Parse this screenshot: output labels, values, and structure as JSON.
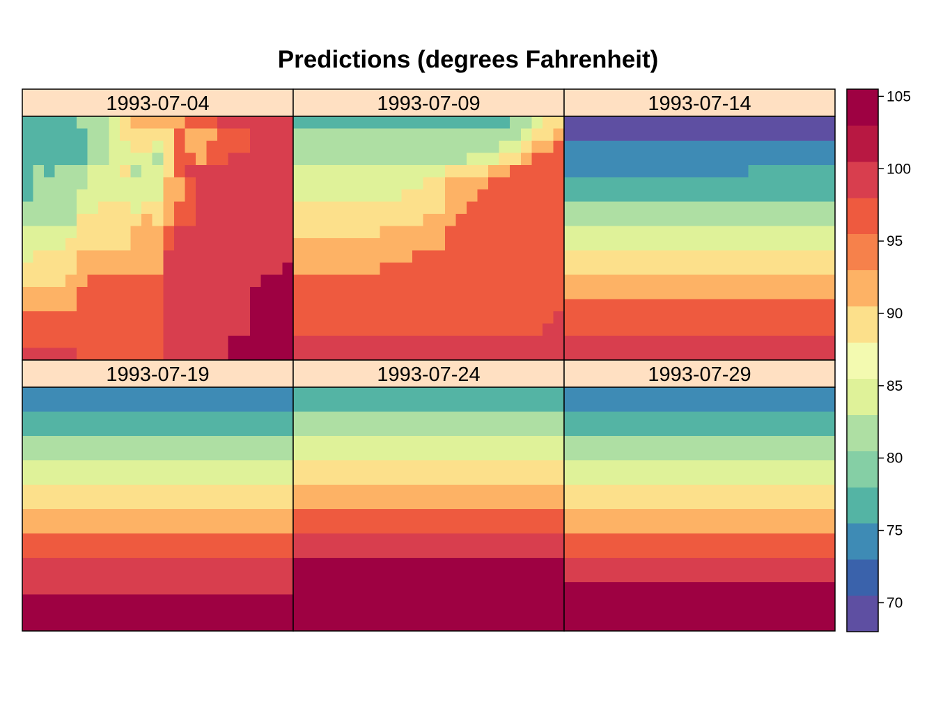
{
  "chart_data": {
    "type": "heatmap",
    "title": "Predictions (degrees Fahrenheit)",
    "panels": [
      {
        "label": "1993-07-04",
        "rows": [
          "2222233345666667778888888",
          "2222223345555576667778888",
          "2222223344554576677778888",
          "2222223344443577677888888",
          "2323334445344578888888888",
          "2333334444444667888888888",
          "2333344444444667888888888",
          "3333344555455677888888888",
          "3333355555565677888888888",
          "4444455555666788888888888",
          "4444555555666788888888888",
          "4555566666666888888888888",
          "5555566666666888888888889",
          "5555667777777888888888999",
          "6666677777777888888889999",
          "6666677777777888888889999",
          "7777777777777888888889999",
          "7777777777777888888889999",
          "7777777777777888888999999",
          "8888877777777888888999999"
        ]
      },
      {
        "label": "1993-07-09",
        "rows": [
          "2222222222222222222233455",
          "3333333333333333333334556",
          "3333333333333333333445667",
          "3333333333333333444556777",
          "4444444444444455556677777",
          "4444444444445566667777777",
          "4444444444555566677777777",
          "5555555555555566777777777",
          "5555555555556667777777777",
          "5555555566666677777777777",
          "6666666666666677777777777",
          "6666666666677777777777777",
          "6666666677777777777777777",
          "7777777777777777777777777",
          "7777777777777777777777777",
          "7777777777777777777777777",
          "7777777777777777777777778",
          "7777777777777777777777788",
          "8888888888888888888888888",
          "8888888888888888888888888"
        ]
      },
      {
        "label": "1993-07-14",
        "rows": [
          "0000000000000000000000000",
          "0000000000000000000000000",
          "1111111111111111111111111",
          "1111111111111111111111111",
          "1111111111111111122222222",
          "2222222222222222222222222",
          "2222222222222222222222222",
          "3333333333333333333333333",
          "3333333333333333333333333",
          "4444444444444444444444444",
          "4444444444444444444444444",
          "5555555555555555555555555",
          "5555555555555555555555555",
          "6666666666666666666666666",
          "6666666666666666666666666",
          "7777777777777777777777777",
          "7777777777777777777777777",
          "7777777777777777777777777",
          "8888888888888888888888888",
          "8888888888888888888888888"
        ]
      },
      {
        "label": "1993-07-19",
        "rows": [
          "1111111111111111111111111",
          "1111111111111111111111111",
          "2222222222222222222222222",
          "2222222222222222222222222",
          "3333333333333333333333333",
          "3333333333333333333333333",
          "4444444444444444444444444",
          "4444444444444444444444444",
          "5555555555555555555555555",
          "5555555555555555555555555",
          "6666666666666666666666666",
          "6666666666666666666666666",
          "7777777777777777777777777",
          "7777777777777777777777777",
          "8888888888888888888888888",
          "8888888888888888888888888",
          "8888888888888888888888888",
          "9999999999999999999999999",
          "9999999999999999999999999",
          "9999999999999999999999999"
        ]
      },
      {
        "label": "1993-07-24",
        "rows": [
          "2222222222222222222222222",
          "2222222222222222222222222",
          "3333333333333333333333333",
          "3333333333333333333333333",
          "4444444444444444444444444",
          "4444444444444444444444444",
          "5555555555555555555555555",
          "5555555555555555555555555",
          "6666666666666666666666666",
          "6666666666666666666666666",
          "7777777777777777777777777",
          "7777777777777777777777777",
          "8888888888888888888888888",
          "8888888888888888888888888",
          "9999999999999999999999999",
          "9999999999999999999999999",
          "9999999999999999999999999",
          "9999999999999999999999999",
          "9999999999999999999999999",
          "9999999999999999999999999"
        ]
      },
      {
        "label": "1993-07-29",
        "rows": [
          "1111111111111111111111111",
          "1111111111111111111111111",
          "2222222222222222222222222",
          "2222222222222222222222222",
          "3333333333333333333333333",
          "3333333333333333333333333",
          "4444444444444444444444444",
          "4444444444444444444444444",
          "5555555555555555555555555",
          "5555555555555555555555555",
          "6666666666666666666666666",
          "6666666666666666666666666",
          "7777777777777777777777777",
          "7777777777777777777777777",
          "8888888888888888888888888",
          "8888888888888888888888888",
          "9999999999999999999999999",
          "9999999999999999999999999",
          "9999999999999999999999999",
          "9999999999999999999999999"
        ]
      }
    ],
    "value_bins": [
      68,
      70.5,
      73,
      75.5,
      78,
      80.5,
      83,
      85.5,
      88,
      90.5,
      93,
      95.5,
      98,
      100.5,
      103,
      105.5
    ],
    "grid_digit_to_bin": [
      1,
      2,
      3,
      4,
      5,
      6,
      7,
      8,
      9,
      10,
      11,
      12,
      13,
      14
    ],
    "legend": {
      "ticks": [
        105,
        100,
        95,
        90,
        85,
        80,
        75,
        70
      ],
      "range": [
        68,
        105.5
      ]
    }
  },
  "colors": {
    "palette": [
      "#5E4FA2",
      "#3A62AB",
      "#3E8BB5",
      "#54B4A4",
      "#85CFA5",
      "#AEDFA3",
      "#DFF299",
      "#F3FAB0",
      "#FCE08B",
      "#FDB265",
      "#F6814B",
      "#EE5A3F",
      "#D83E4E",
      "#B81842",
      "#9E0142"
    ],
    "strip_background": "#FFE0C2",
    "frame": "#000000"
  }
}
